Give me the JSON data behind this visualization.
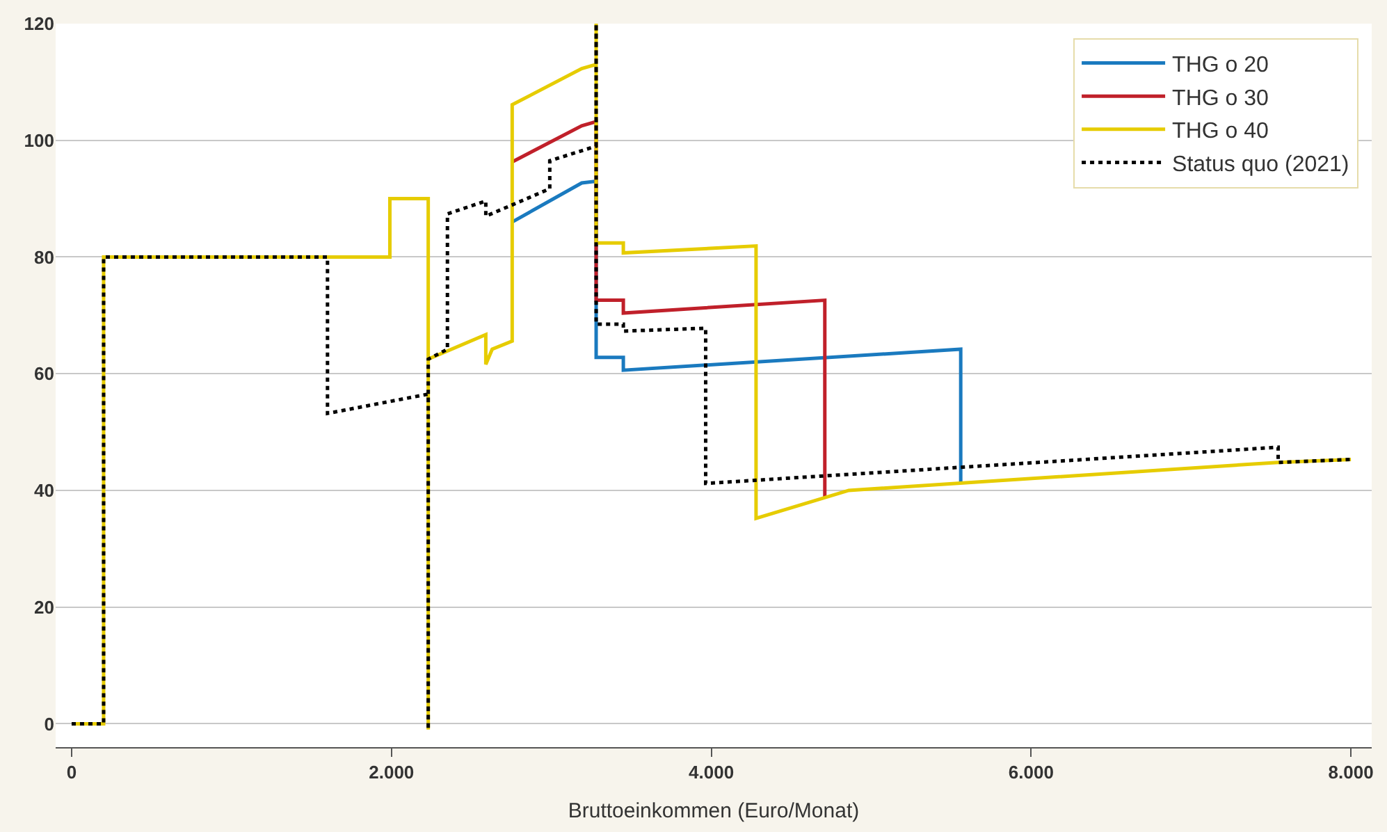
{
  "chart_data": {
    "type": "line",
    "xlabel": "Bruttoeinkommen (Euro/Monat)",
    "xlim": [
      -100,
      8130
    ],
    "ylim": [
      -4,
      120
    ],
    "xticks": [
      0,
      {
        "value": 2000,
        "label": "2.000"
      },
      {
        "value": 4000,
        "label": "4.000"
      },
      {
        "value": 6000,
        "label": "6.000"
      },
      {
        "value": 8000,
        "label": "8.000"
      }
    ],
    "yticks": [
      0,
      20,
      40,
      60,
      80,
      100,
      120
    ],
    "grid": "y",
    "legend": "top right",
    "marker": "none",
    "series": [
      {
        "name": "THG o 20",
        "color": "#1a7abf",
        "line_style": "solid",
        "x": [
          2755,
          3190,
          3280,
          3280,
          3450,
          3450,
          5560,
          5560
        ],
        "values": [
          86,
          92.7,
          93,
          62.8,
          62.8,
          60.6,
          64.2,
          41.3
        ]
      },
      {
        "name": "THG o 30",
        "color": "#c0202a",
        "line_style": "solid",
        "x": [
          2755,
          3190,
          3280,
          3280,
          3450,
          3450,
          4710,
          4710
        ],
        "values": [
          96.3,
          102.5,
          103.2,
          72.6,
          72.6,
          70.4,
          72.6,
          38.8
        ]
      },
      {
        "name": "THG o 40",
        "color": "#e6cc00",
        "line_style": "solid",
        "x": [
          0,
          200,
          200,
          1990,
          1990,
          2230,
          2230,
          2230,
          2590,
          2590,
          2630,
          2755,
          2755,
          3190,
          3280,
          3280,
          3280,
          3450,
          3450,
          4280,
          4280,
          4860,
          7545,
          8000
        ],
        "values": [
          0,
          0,
          80,
          80,
          90,
          90,
          -1,
          62.5,
          66.7,
          61.6,
          64.2,
          65.6,
          106.1,
          112.3,
          113,
          120,
          82.4,
          82.4,
          80.7,
          81.9,
          35.2,
          40,
          44.8,
          45.3
        ]
      },
      {
        "name": "Status quo (2021)",
        "color": "#000000",
        "line_style": "dotted",
        "x": [
          0,
          200,
          200,
          1600,
          1600,
          2230,
          2230,
          2230,
          2350,
          2350,
          2590,
          2590,
          2990,
          2990,
          3280,
          3280,
          3280,
          3450,
          3450,
          3965,
          3965,
          7545,
          7545,
          8000
        ],
        "values": [
          0,
          0,
          80,
          80,
          53.2,
          56.5,
          -1,
          62.5,
          64.2,
          87.4,
          89.6,
          87,
          91.7,
          96.5,
          99,
          120,
          68.5,
          68.5,
          67.3,
          67.8,
          41.2,
          47.4,
          44.8,
          45.3
        ]
      }
    ]
  }
}
